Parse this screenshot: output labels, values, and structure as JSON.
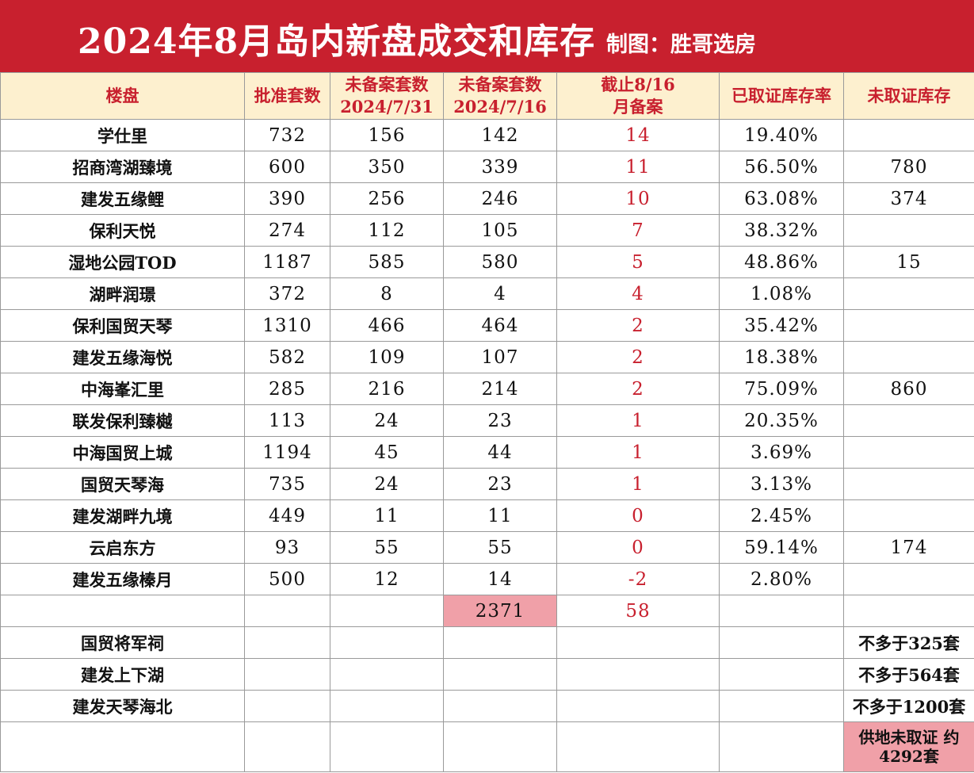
{
  "title": "2024年8月岛内新盘成交和库存",
  "credit": "制图：胜哥选房",
  "colors": {
    "banner": "#c8202e",
    "accent": "#c8202e",
    "header_bg": "#fdf0cf",
    "total_bg": "#f0a0a8"
  },
  "headers": {
    "project": "楼盘",
    "approved": "批准套数",
    "unfiled_0731_line1": "未备案套数",
    "unfiled_0731_line2": "2024/7/31",
    "unfiled_0716_line1": "未备案套数",
    "unfiled_0716_line2": "2024/7/16",
    "filed_line1": "截止8/16",
    "filed_line2": "月备案",
    "certified_rate": "已取证库存率",
    "uncertified": "未取证库存"
  },
  "rows": [
    [
      "学仕里",
      "732",
      "156",
      "142",
      "14",
      "19.40%",
      ""
    ],
    [
      "招商湾湖臻境",
      "600",
      "350",
      "339",
      "11",
      "56.50%",
      "780"
    ],
    [
      "建发五缘鲤",
      "390",
      "256",
      "246",
      "10",
      "63.08%",
      "374"
    ],
    [
      "保利天悦",
      "274",
      "112",
      "105",
      "7",
      "38.32%",
      ""
    ],
    [
      "湿地公园TOD",
      "1187",
      "585",
      "580",
      "5",
      "48.86%",
      "15"
    ],
    [
      "湖畔润璟",
      "372",
      "8",
      "4",
      "4",
      "1.08%",
      ""
    ],
    [
      "保利国贸天琴",
      "1310",
      "466",
      "464",
      "2",
      "35.42%",
      ""
    ],
    [
      "建发五缘海悦",
      "582",
      "109",
      "107",
      "2",
      "18.38%",
      ""
    ],
    [
      "中海峯汇里",
      "285",
      "216",
      "214",
      "2",
      "75.09%",
      "860"
    ],
    [
      "联发保利臻樾",
      "113",
      "24",
      "23",
      "1",
      "20.35%",
      ""
    ],
    [
      "中海国贸上城",
      "1194",
      "45",
      "44",
      "1",
      "3.69%",
      ""
    ],
    [
      "国贸天琴海",
      "735",
      "24",
      "23",
      "1",
      "3.13%",
      ""
    ],
    [
      "建发湖畔九境",
      "449",
      "11",
      "11",
      "0",
      "2.45%",
      ""
    ],
    [
      "云启东方",
      "93",
      "55",
      "55",
      "0",
      "59.14%",
      "174"
    ],
    [
      "建发五缘榛月",
      "500",
      "12",
      "14",
      "-2",
      "2.80%",
      ""
    ]
  ],
  "totals": {
    "unfiled_0716": "2371",
    "filed": "58"
  },
  "future_projects": [
    {
      "name": "国贸将军祠",
      "note": "不多于325套"
    },
    {
      "name": "建发上下湖",
      "note": "不多于564套"
    },
    {
      "name": "建发天琴海北",
      "note": "不多于1200套"
    }
  ],
  "supply_note_line1": "供地未取证 约",
  "supply_note_line2": "4292套"
}
